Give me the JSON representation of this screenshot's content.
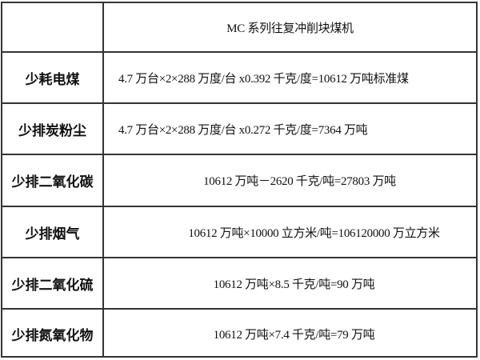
{
  "table": {
    "header": {
      "label": "",
      "title": "MC 系列往复冲削块煤机"
    },
    "rows": [
      {
        "label": "少耗电煤",
        "value": "4.7 万台×2×288 万度/台 x0.392 千克/度=10612 万吨标准煤"
      },
      {
        "label": "少排炭粉尘",
        "value": "4.7 万台×2×288 万度/台 x0.272 千克/度=7364 万吨"
      },
      {
        "label": "少排二氧化碳",
        "value": "10612 万吨－2620 千克/吨=27803 万吨"
      },
      {
        "label": "少排烟气",
        "value": "10612 万吨×10000 立方米/吨=106120000 万立方米"
      },
      {
        "label": "少排二氧化硫",
        "value": "10612 万吨×8.5 千克/吨=90 万吨"
      },
      {
        "label": "少排氮氧化物",
        "value": "10612 万吨×7.4 千克/吨=79 万吨"
      }
    ]
  }
}
